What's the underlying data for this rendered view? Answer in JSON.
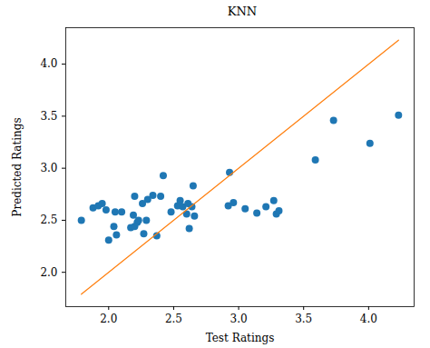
{
  "chart_data": {
    "type": "scatter",
    "title": "KNN",
    "x_label": "Test Ratings",
    "y_label": "Predicted Ratings",
    "xlim": [
      1.67,
      4.35
    ],
    "ylim": [
      1.67,
      4.35
    ],
    "xticks": [
      {
        "value": 2,
        "label": "2.0"
      },
      {
        "value": 2.5,
        "label": "2.5"
      },
      {
        "value": 3,
        "label": "3.0"
      },
      {
        "value": 3.5,
        "label": "3.5"
      },
      {
        "value": 4,
        "label": "4.0"
      }
    ],
    "yticks": [
      {
        "value": 2,
        "label": "2.0"
      },
      {
        "value": 2.5,
        "label": "2.5"
      },
      {
        "value": 3,
        "label": "3.0"
      },
      {
        "value": 3.5,
        "label": "3.5"
      },
      {
        "value": 4,
        "label": "4.0"
      }
    ],
    "series": [
      {
        "type": "scatter",
        "color": "#1f77b4",
        "marker": "circle",
        "x": [
          1.79,
          1.88,
          1.92,
          1.95,
          1.98,
          2.0,
          2.04,
          2.05,
          2.06,
          2.1,
          2.17,
          2.19,
          2.2,
          2.2,
          2.22,
          2.23,
          2.26,
          2.27,
          2.29,
          2.3,
          2.34,
          2.37,
          2.4,
          2.42,
          2.48,
          2.53,
          2.55,
          2.57,
          2.6,
          2.61,
          2.62,
          2.64,
          2.65,
          2.66,
          2.92,
          2.93,
          2.96,
          3.05,
          3.14,
          3.21,
          3.27,
          3.29,
          3.31,
          3.59,
          3.73,
          4.01,
          4.23
        ],
        "values": [
          2.5,
          2.62,
          2.64,
          2.66,
          2.6,
          2.31,
          2.44,
          2.58,
          2.36,
          2.58,
          2.43,
          2.55,
          2.73,
          2.44,
          2.48,
          2.5,
          2.66,
          2.37,
          2.5,
          2.7,
          2.74,
          2.35,
          2.73,
          2.93,
          2.58,
          2.64,
          2.69,
          2.63,
          2.56,
          2.66,
          2.42,
          2.63,
          2.83,
          2.54,
          2.64,
          2.96,
          2.67,
          2.61,
          2.57,
          2.63,
          2.69,
          2.56,
          2.59,
          3.08,
          3.46,
          3.24,
          3.51
        ]
      },
      {
        "type": "line",
        "color": "#ff7f0e",
        "line_style": "solid",
        "x": [
          1.79,
          4.23
        ],
        "values": [
          1.79,
          4.23
        ]
      }
    ]
  }
}
